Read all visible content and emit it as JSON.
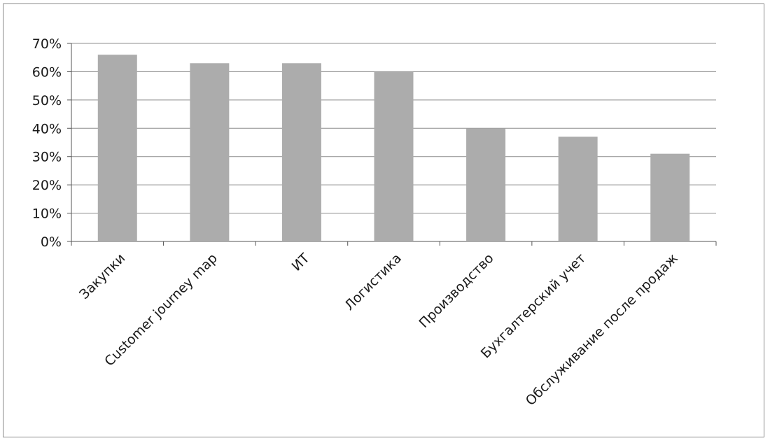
{
  "chart_data": {
    "type": "bar",
    "title": "",
    "xlabel": "",
    "ylabel": "",
    "categories": [
      "Закупки",
      "Customer journey map",
      "ИТ",
      "Логистика",
      "Производство",
      "Бухгалтерский учет",
      "Обслуживание после продаж"
    ],
    "values": [
      66,
      63,
      63,
      60,
      40,
      37,
      31
    ],
    "ylim": [
      0,
      70
    ],
    "yticks": [
      {
        "value": 0,
        "label": "0%"
      },
      {
        "value": 10,
        "label": "10%"
      },
      {
        "value": 20,
        "label": "20%"
      },
      {
        "value": 30,
        "label": "30%"
      },
      {
        "value": 40,
        "label": "40%"
      },
      {
        "value": 50,
        "label": "50%"
      },
      {
        "value": 60,
        "label": "60%"
      },
      {
        "value": 70,
        "label": "70%"
      }
    ],
    "grid": true,
    "legend": "none",
    "colors": {
      "bar": "#acacac",
      "grid": "#8c8c8c",
      "axis": "#555555",
      "text": "#1a1a1a",
      "frame": "#8a8a8a"
    }
  }
}
